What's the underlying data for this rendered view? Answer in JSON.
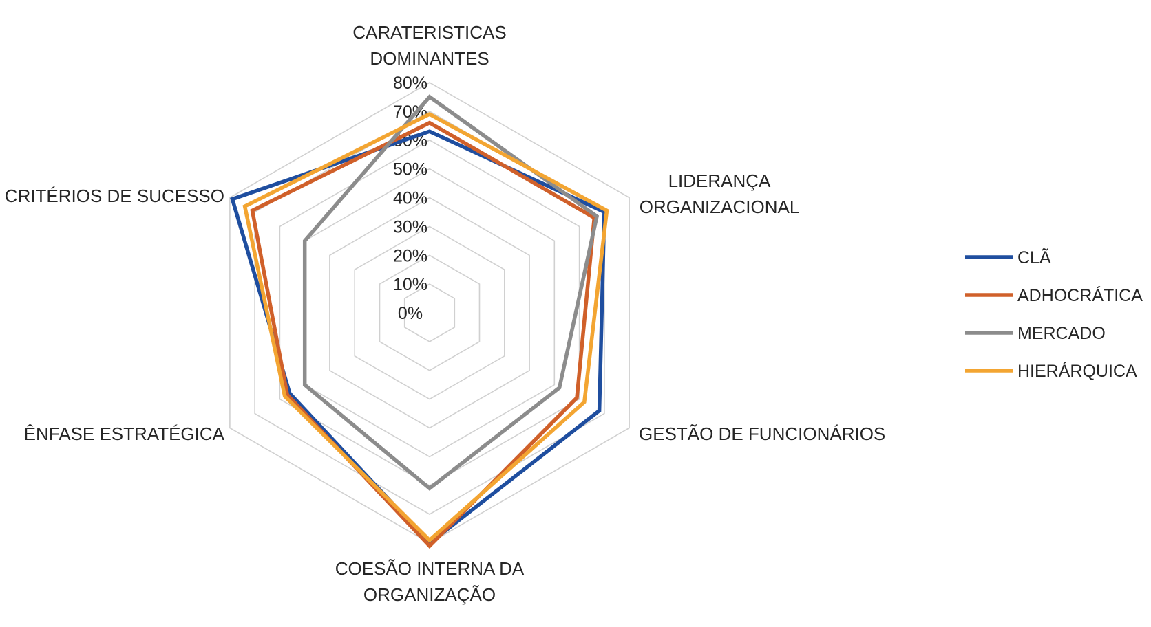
{
  "chart_data": {
    "type": "radar",
    "title": "",
    "axes": [
      {
        "id": "carateristicas",
        "lines": [
          "CARATERISTICAS",
          "DOMINANTES"
        ]
      },
      {
        "id": "lideranca",
        "lines": [
          "LIDERANÇA",
          "ORGANIZACIONAL"
        ]
      },
      {
        "id": "gestao",
        "lines": [
          "GESTÃO DE FUNCIONÁRIOS"
        ]
      },
      {
        "id": "coesao",
        "lines": [
          "COESÃO INTERNA DA",
          "ORGANIZAÇÃO"
        ]
      },
      {
        "id": "enfase",
        "lines": [
          "ÊNFASE ESTRATÉGICA"
        ]
      },
      {
        "id": "criterios",
        "lines": [
          "CRITÉRIOS DE SUCESSO"
        ]
      }
    ],
    "rlim": [
      0,
      80
    ],
    "ticks": [
      0,
      10,
      20,
      30,
      40,
      50,
      60,
      70,
      80
    ],
    "tick_labels": [
      "0%",
      "10%",
      "20%",
      "30%",
      "40%",
      "50%",
      "60%",
      "70%",
      "80%"
    ],
    "grid": true,
    "legend_position": "right",
    "series": [
      {
        "name": "CLÃ",
        "color": "#1f4e9f",
        "values": [
          63,
          70,
          68,
          80,
          56,
          79
        ]
      },
      {
        "name": "ADHOCRÁTICA",
        "color": "#d0602a",
        "values": [
          66,
          66,
          59,
          81,
          57,
          71
        ]
      },
      {
        "name": "MERCADO",
        "color": "#8c8c8c",
        "values": [
          75,
          67,
          52,
          61,
          50,
          50
        ]
      },
      {
        "name": "HIERÁRQUICA",
        "color": "#f3a532",
        "values": [
          69,
          71,
          62,
          79,
          58,
          74
        ]
      }
    ]
  }
}
